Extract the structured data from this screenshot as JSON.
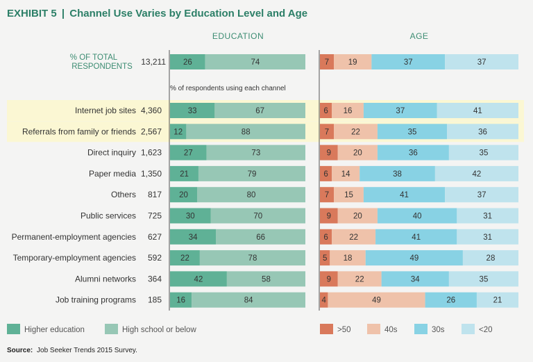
{
  "title": {
    "exhibit": "EXHIBIT 5",
    "separator": "|",
    "text": "Channel Use Varies by Education Level and Age"
  },
  "headers": {
    "education": "EDUCATION",
    "age": "AGE"
  },
  "total": {
    "label_line1": "% OF TOTAL",
    "label_line2": "RESPONDENTS",
    "count": "13,211",
    "education": [
      26,
      74
    ],
    "age": [
      7,
      19,
      37,
      37
    ]
  },
  "subtitle": "% of respondents using each channel",
  "colors": {
    "higher_education": "#5fb196",
    "high_school": "#97c7b5",
    "age_50plus": "#d9795b",
    "age_40s": "#efc2aa",
    "age_30s": "#88d2e4",
    "age_under20": "#bfe3ed",
    "highlight": "#fbf7d3",
    "title_green": "#2c7f67",
    "label_dark": "#333333"
  },
  "chart_data": {
    "type": "bar",
    "orientation": "horizontal-stacked-100",
    "title": "Channel Use Varies by Education Level and Age",
    "categories": [
      "Internet job sites",
      "Referrals from family or friends",
      "Direct inquiry",
      "Paper media",
      "Others",
      "Public services",
      "Permanent-employment agencies",
      "Temporary-employment agencies",
      "Alumni networks",
      "Job training programs"
    ],
    "counts": [
      "4,360",
      "2,567",
      "1,623",
      "1,350",
      "817",
      "725",
      "627",
      "592",
      "364",
      "185"
    ],
    "highlighted": [
      "Internet job sites",
      "Referrals from family or friends"
    ],
    "education_series": [
      {
        "name": "Higher education",
        "values": [
          33,
          12,
          27,
          21,
          20,
          30,
          34,
          22,
          42,
          16
        ]
      },
      {
        "name": "High school or below",
        "values": [
          67,
          88,
          73,
          79,
          80,
          70,
          66,
          78,
          58,
          84
        ]
      }
    ],
    "age_series": [
      {
        "name": ">50",
        "values": [
          6,
          7,
          9,
          6,
          7,
          9,
          6,
          5,
          9,
          4
        ]
      },
      {
        "name": "40s",
        "values": [
          16,
          22,
          20,
          14,
          15,
          20,
          22,
          18,
          22,
          49
        ]
      },
      {
        "name": "30s",
        "values": [
          37,
          35,
          36,
          38,
          41,
          40,
          41,
          49,
          34,
          26
        ]
      },
      {
        "name": "<20",
        "values": [
          41,
          36,
          35,
          42,
          37,
          31,
          31,
          28,
          35,
          21
        ]
      }
    ]
  },
  "legend": [
    {
      "label": "Higher education",
      "color_key": "higher_education"
    },
    {
      "label": "High school or below",
      "color_key": "high_school"
    },
    {
      "label": ">50",
      "color_key": "age_50plus"
    },
    {
      "label": "40s",
      "color_key": "age_40s"
    },
    {
      "label": "30s",
      "color_key": "age_30s"
    },
    {
      "label": "<20",
      "color_key": "age_under20"
    }
  ],
  "source": {
    "label": "Source:",
    "text": "Job Seeker Trends 2015 Survey."
  }
}
